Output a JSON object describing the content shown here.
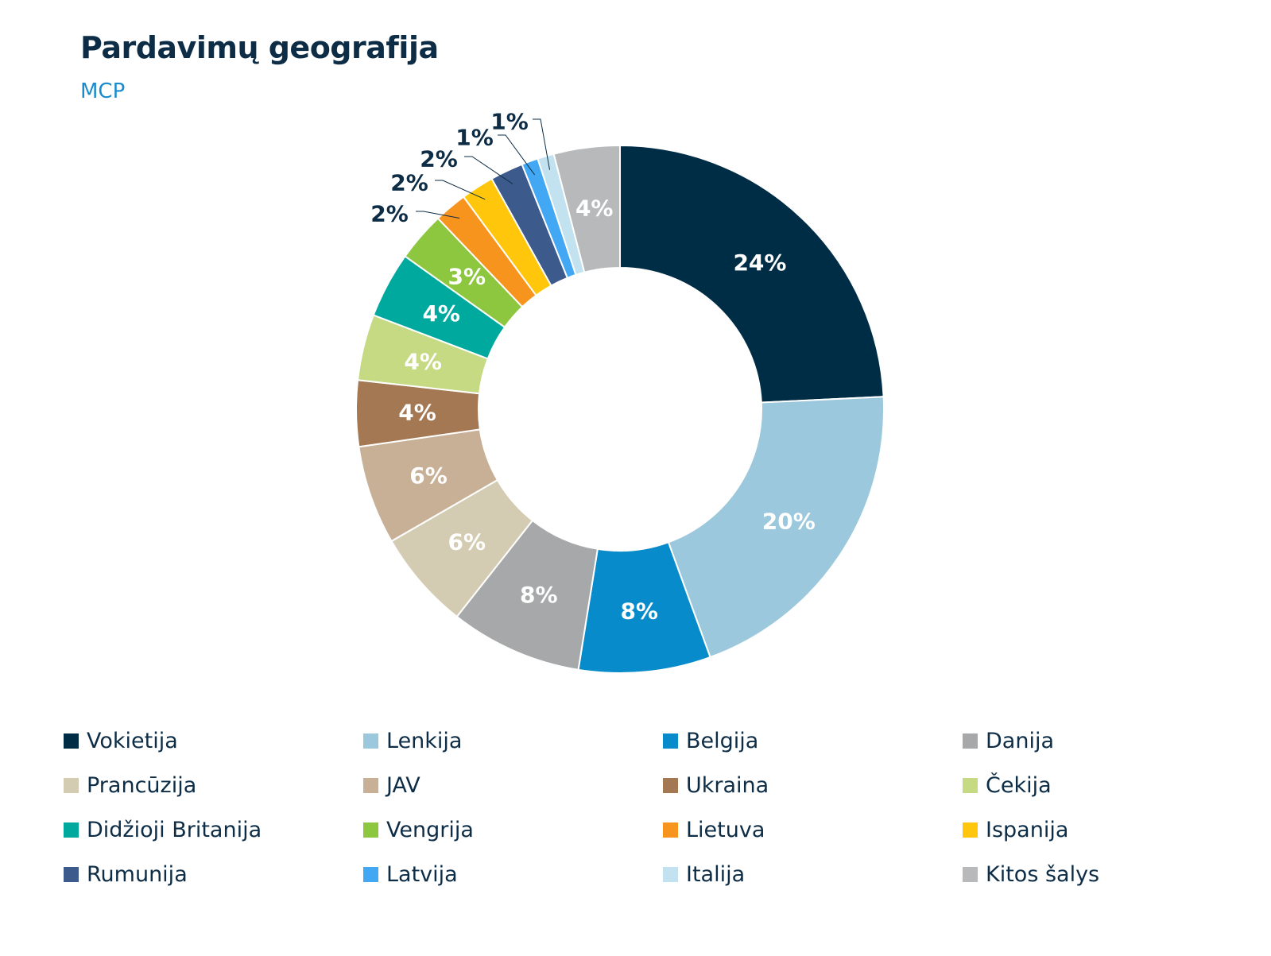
{
  "header": {
    "title": "Pardavimų geografija",
    "subtitle": "MCP"
  },
  "chart_data": {
    "type": "pie",
    "variant": "donut",
    "title": "Pardavimų geografija",
    "subtitle": "MCP",
    "legend_position": "bottom",
    "slices": [
      {
        "name": "Vokietija",
        "value": 24,
        "label": "24%",
        "color": "#002d46",
        "label_color": "#ffffff"
      },
      {
        "name": "Lenkija",
        "value": 20,
        "label": "20%",
        "color": "#9bc8dc",
        "label_color": "#ffffff"
      },
      {
        "name": "Belgija",
        "value": 8,
        "label": "8%",
        "color": "#078bca",
        "label_color": "#ffffff"
      },
      {
        "name": "Danija",
        "value": 8,
        "label": "8%",
        "color": "#a6a8a9",
        "label_color": "#ffffff"
      },
      {
        "name": "Prancūzija",
        "value": 6,
        "label": "6%",
        "color": "#d4ccb2",
        "label_color": "#ffffff"
      },
      {
        "name": "JAV",
        "value": 6,
        "label": "6%",
        "color": "#c8b097",
        "label_color": "#ffffff"
      },
      {
        "name": "Ukraina",
        "value": 4,
        "label": "4%",
        "color": "#a47853",
        "label_color": "#ffffff"
      },
      {
        "name": "Čekija",
        "value": 4,
        "label": "4%",
        "color": "#c6da84",
        "label_color": "#ffffff"
      },
      {
        "name": "Didžioji Britanija",
        "value": 4,
        "label": "4%",
        "color": "#00a99e",
        "label_color": "#ffffff"
      },
      {
        "name": "Vengrija",
        "value": 3,
        "label": "3%",
        "color": "#8dc63f",
        "label_color": "#ffffff"
      },
      {
        "name": "Lietuva",
        "value": 2,
        "label": "2%",
        "color": "#f7941e",
        "label_color": "#0d2c45"
      },
      {
        "name": "Ispanija",
        "value": 2,
        "label": "2%",
        "color": "#ffc60b",
        "label_color": "#0d2c45"
      },
      {
        "name": "Rumunija",
        "value": 2,
        "label": "2%",
        "color": "#3d5a8c",
        "label_color": "#0d2c45"
      },
      {
        "name": "Latvija",
        "value": 1,
        "label": "1%",
        "color": "#42a8f4",
        "label_color": "#0d2c45"
      },
      {
        "name": "Italija",
        "value": 1,
        "label": "1%",
        "color": "#c3e2f0",
        "label_color": "#0d2c45"
      },
      {
        "name": "Kitos šalys",
        "value": 4,
        "label": "4%",
        "color": "#b7b9ba",
        "label_color": "#ffffff"
      }
    ]
  }
}
